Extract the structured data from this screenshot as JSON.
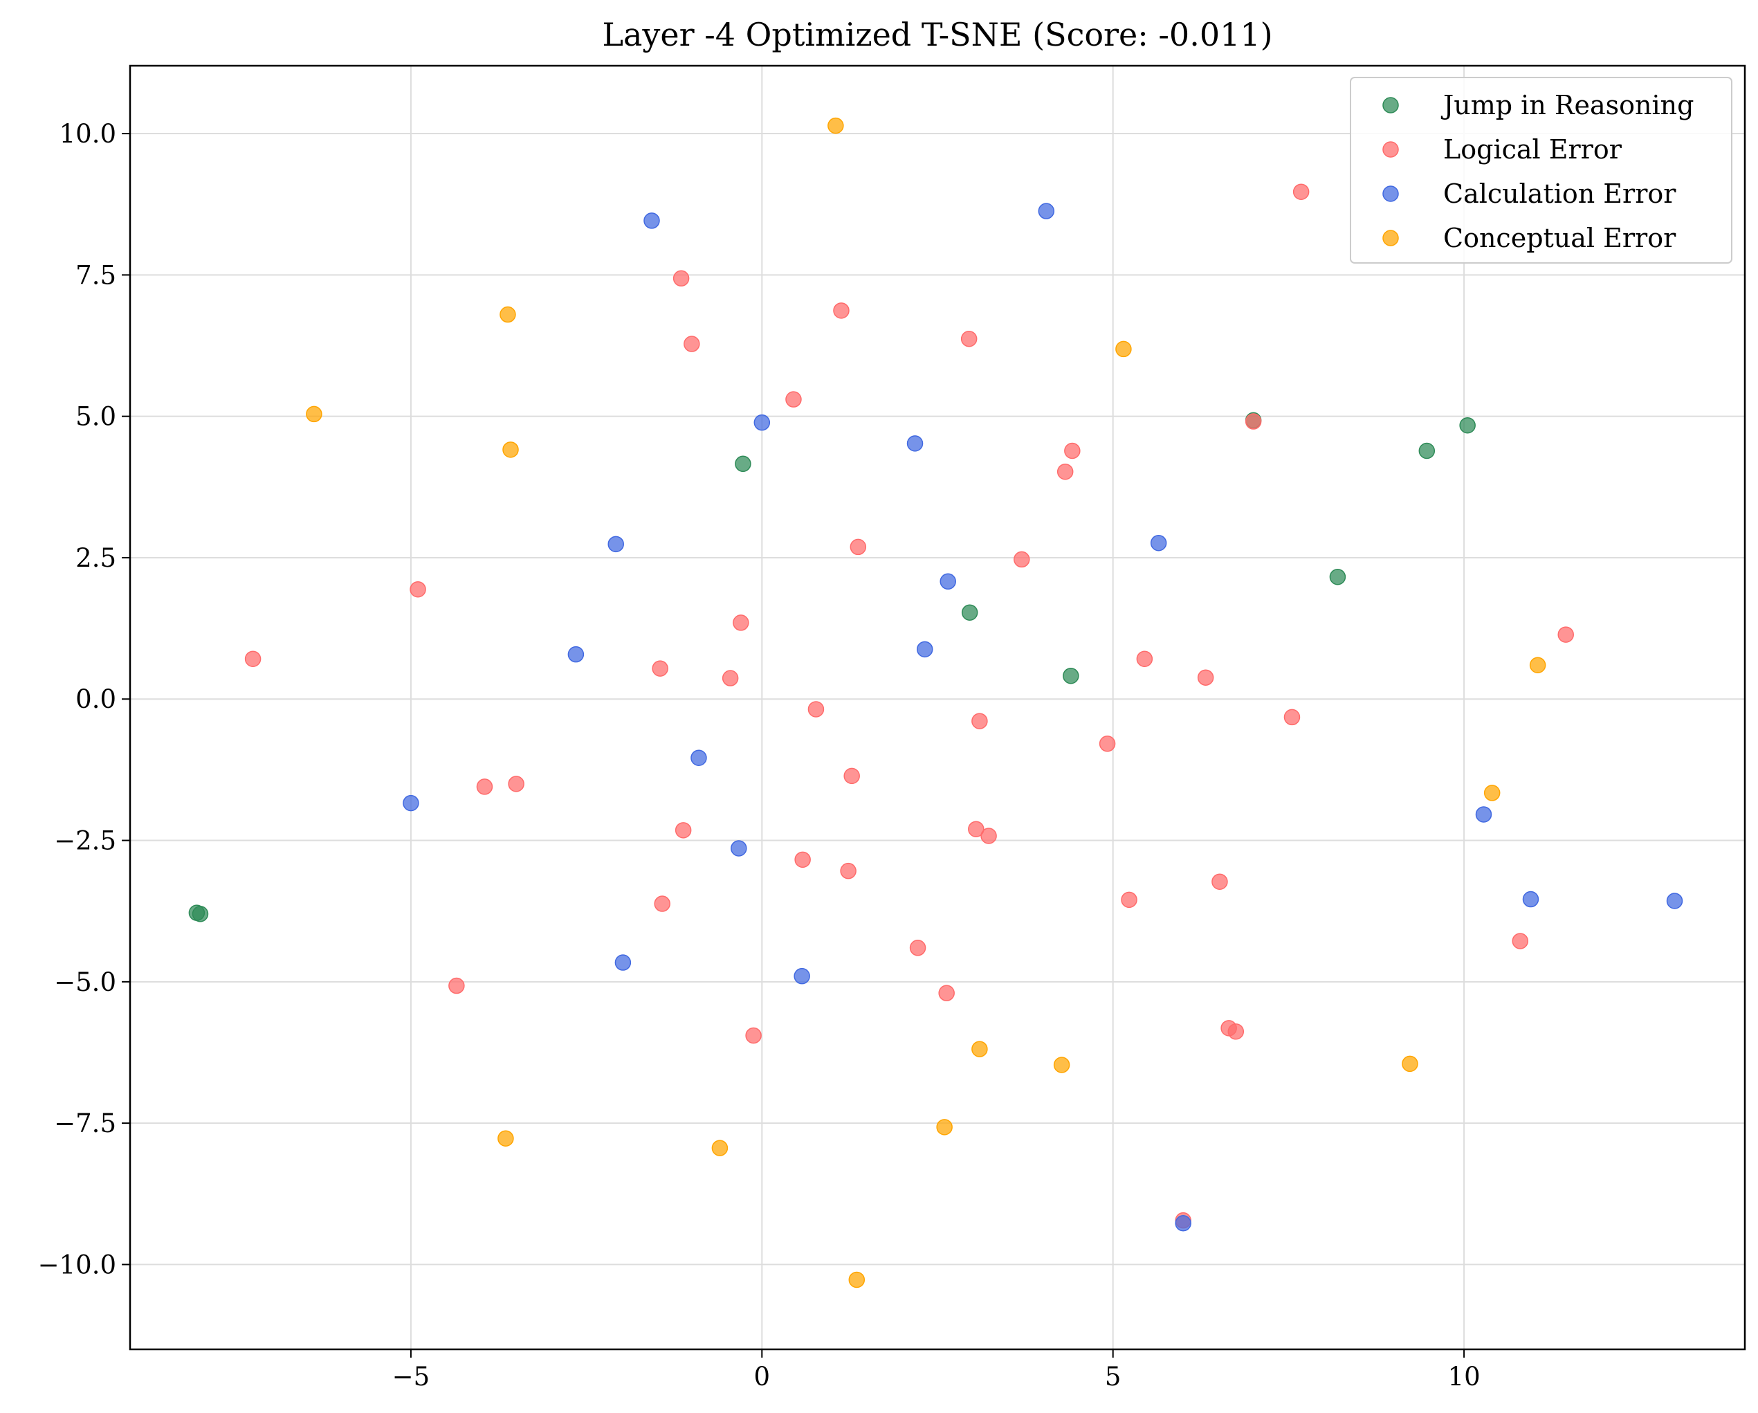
{
  "chart_data": {
    "type": "scatter",
    "title": "Layer -4 Optimized T-SNE (Score: -0.011)",
    "xlabel": "",
    "ylabel": "",
    "xlim": [
      -9.0,
      14.0
    ],
    "ylim": [
      -11.5,
      11.2
    ],
    "xticks": [
      -5,
      0,
      5,
      10
    ],
    "xtick_labels": [
      "−5",
      "0",
      "5",
      "10"
    ],
    "yticks": [
      10.0,
      7.5,
      5.0,
      2.5,
      0.0,
      -2.5,
      -5.0,
      -7.5,
      -10.0
    ],
    "ytick_labels": [
      "10.0",
      "7.5",
      "5.0",
      "2.5",
      "0.0",
      "−2.5",
      "−5.0",
      "−7.5",
      "−10.0"
    ],
    "grid": true,
    "legend_position": "top-right",
    "series": [
      {
        "name": "Jump in Reasoning",
        "color": "#2e8b57",
        "points": [
          [
            -8.05,
            -3.78
          ],
          [
            -8.0,
            -3.8
          ],
          [
            -0.27,
            4.16
          ],
          [
            2.96,
            1.53
          ],
          [
            4.4,
            0.41
          ],
          [
            7.0,
            4.93
          ],
          [
            8.2,
            2.16
          ],
          [
            9.47,
            4.39
          ],
          [
            10.05,
            4.84
          ]
        ]
      },
      {
        "name": "Logical Error",
        "color": "#ff6b6b",
        "points": [
          [
            -7.25,
            0.71
          ],
          [
            -4.9,
            1.94
          ],
          [
            -3.95,
            -1.55
          ],
          [
            -3.5,
            -1.5
          ],
          [
            -4.35,
            -5.07
          ],
          [
            -1.45,
            0.54
          ],
          [
            -1.42,
            -3.62
          ],
          [
            -1.15,
            7.44
          ],
          [
            -1.0,
            6.28
          ],
          [
            -1.12,
            -2.32
          ],
          [
            -0.3,
            1.35
          ],
          [
            -0.45,
            0.37
          ],
          [
            -0.12,
            -5.95
          ],
          [
            0.45,
            5.3
          ],
          [
            0.58,
            -2.84
          ],
          [
            0.77,
            -0.18
          ],
          [
            1.13,
            6.87
          ],
          [
            1.28,
            -1.36
          ],
          [
            1.37,
            2.69
          ],
          [
            1.23,
            -3.04
          ],
          [
            2.22,
            -4.4
          ],
          [
            2.63,
            -5.2
          ],
          [
            2.95,
            6.37
          ],
          [
            3.05,
            -2.3
          ],
          [
            3.1,
            -0.39
          ],
          [
            3.23,
            -2.42
          ],
          [
            3.7,
            2.47
          ],
          [
            4.32,
            4.02
          ],
          [
            4.42,
            4.39
          ],
          [
            4.92,
            -0.79
          ],
          [
            5.23,
            -3.55
          ],
          [
            5.45,
            0.71
          ],
          [
            6.0,
            -9.22
          ],
          [
            6.32,
            0.38
          ],
          [
            6.52,
            -3.23
          ],
          [
            6.65,
            -5.82
          ],
          [
            6.75,
            -5.88
          ],
          [
            7.0,
            4.91
          ],
          [
            7.55,
            -0.32
          ],
          [
            7.68,
            8.97
          ],
          [
            10.8,
            -4.28
          ],
          [
            11.45,
            1.14
          ]
        ]
      },
      {
        "name": "Calculation Error",
        "color": "#4169e1",
        "points": [
          [
            -5.0,
            -1.84
          ],
          [
            -2.65,
            0.79
          ],
          [
            -2.08,
            2.74
          ],
          [
            -1.98,
            -4.66
          ],
          [
            -1.57,
            8.46
          ],
          [
            -0.9,
            -1.04
          ],
          [
            -0.33,
            -2.64
          ],
          [
            0.0,
            4.89
          ],
          [
            0.57,
            -4.9
          ],
          [
            2.18,
            4.52
          ],
          [
            2.32,
            0.88
          ],
          [
            2.65,
            2.08
          ],
          [
            4.05,
            8.63
          ],
          [
            5.65,
            2.76
          ],
          [
            6.0,
            -9.27
          ],
          [
            10.28,
            -2.04
          ],
          [
            10.95,
            -3.54
          ],
          [
            13.0,
            -3.57
          ]
        ]
      },
      {
        "name": "Conceptual Error",
        "color": "#ffa500",
        "points": [
          [
            -6.38,
            5.04
          ],
          [
            -3.62,
            6.8
          ],
          [
            -3.58,
            4.41
          ],
          [
            -3.65,
            -7.77
          ],
          [
            -0.6,
            -7.94
          ],
          [
            1.05,
            10.14
          ],
          [
            1.35,
            -10.27
          ],
          [
            2.6,
            -7.57
          ],
          [
            3.1,
            -6.19
          ],
          [
            4.27,
            -6.47
          ],
          [
            5.15,
            6.19
          ],
          [
            9.23,
            -6.45
          ],
          [
            10.4,
            -1.66
          ],
          [
            11.05,
            0.6
          ]
        ]
      }
    ]
  }
}
